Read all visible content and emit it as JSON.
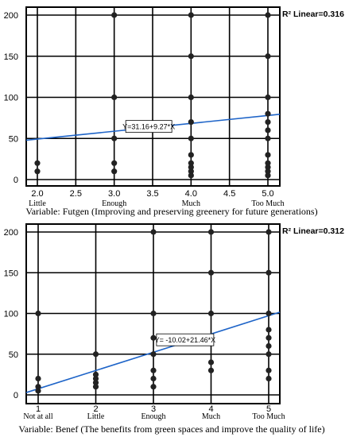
{
  "chart_data": [
    {
      "type": "scatter",
      "xlabel": "Variable: Futgen (Improving and preserving greenery for future generations)",
      "ylabel": "",
      "xlim": [
        1.8,
        5.2
      ],
      "ylim": [
        -10,
        205
      ],
      "x_ticks": [
        "2.0",
        "2.5",
        "3.0",
        "3.5",
        "4.0",
        "4.5",
        "5.0"
      ],
      "x_tick_values": [
        2.0,
        2.5,
        3.0,
        3.5,
        4.0,
        4.5,
        5.0
      ],
      "y_ticks": [
        "0",
        "50",
        "100",
        "150",
        "200"
      ],
      "y_tick_values": [
        0,
        50,
        100,
        150,
        200
      ],
      "category_labels": [
        {
          "x": 2.0,
          "label": "Little"
        },
        {
          "x": 3.0,
          "label": "Enough"
        },
        {
          "x": 4.0,
          "label": "Much"
        },
        {
          "x": 5.0,
          "label": "Too Much"
        }
      ],
      "r2_label": "R² Linear=0.316",
      "fit": {
        "equation": "Y=31.16+9.27*X",
        "intercept": 31.16,
        "slope": 9.27,
        "label_x": 3.45
      },
      "points": [
        {
          "x": 2,
          "y": 10
        },
        {
          "x": 2,
          "y": 20
        },
        {
          "x": 3,
          "y": 10
        },
        {
          "x": 3,
          "y": 20
        },
        {
          "x": 3,
          "y": 50
        },
        {
          "x": 3,
          "y": 100
        },
        {
          "x": 3,
          "y": 200
        },
        {
          "x": 4,
          "y": 5
        },
        {
          "x": 4,
          "y": 10
        },
        {
          "x": 4,
          "y": 15
        },
        {
          "x": 4,
          "y": 20
        },
        {
          "x": 4,
          "y": 30
        },
        {
          "x": 4,
          "y": 50
        },
        {
          "x": 4,
          "y": 70
        },
        {
          "x": 4,
          "y": 100
        },
        {
          "x": 4,
          "y": 150
        },
        {
          "x": 4,
          "y": 200
        },
        {
          "x": 5,
          "y": 5
        },
        {
          "x": 5,
          "y": 10
        },
        {
          "x": 5,
          "y": 15
        },
        {
          "x": 5,
          "y": 20
        },
        {
          "x": 5,
          "y": 30
        },
        {
          "x": 5,
          "y": 50
        },
        {
          "x": 5,
          "y": 60
        },
        {
          "x": 5,
          "y": 70
        },
        {
          "x": 5,
          "y": 80
        },
        {
          "x": 5,
          "y": 100
        },
        {
          "x": 5,
          "y": 150
        },
        {
          "x": 5,
          "y": 200
        }
      ],
      "grid": true,
      "gridlines_x": [
        2.0,
        2.5,
        3.0,
        3.5,
        4.0,
        4.5,
        5.0
      ],
      "gridlines_y": [
        0,
        50,
        100,
        150,
        200
      ]
    },
    {
      "type": "scatter",
      "xlabel": "Variable: Benef (The benefits from green spaces and improve the quality of life)",
      "ylabel": "",
      "xlim": [
        0.6,
        5.2
      ],
      "ylim": [
        -10,
        205
      ],
      "x_ticks": [
        "1",
        "2",
        "3",
        "4",
        "5"
      ],
      "x_tick_values": [
        1,
        2,
        3,
        4,
        5
      ],
      "y_ticks": [
        "0",
        "50",
        "100",
        "150",
        "200"
      ],
      "y_tick_values": [
        0,
        50,
        100,
        150,
        200
      ],
      "category_labels": [
        {
          "x": 1,
          "label": "Not at all"
        },
        {
          "x": 2,
          "label": "Little"
        },
        {
          "x": 3,
          "label": "Enough"
        },
        {
          "x": 4,
          "label": "Much"
        },
        {
          "x": 5,
          "label": "Too Much"
        }
      ],
      "r2_label": "R² Linear=0.312",
      "fit": {
        "equation": "Y= -10.02+21.46*X",
        "intercept": -10.02,
        "slope": 21.46,
        "label_x": 3.55
      },
      "points": [
        {
          "x": 1,
          "y": 5
        },
        {
          "x": 1,
          "y": 10
        },
        {
          "x": 1,
          "y": 20
        },
        {
          "x": 1,
          "y": 100
        },
        {
          "x": 2,
          "y": 10
        },
        {
          "x": 2,
          "y": 15
        },
        {
          "x": 2,
          "y": 20
        },
        {
          "x": 2,
          "y": 25
        },
        {
          "x": 2,
          "y": 50
        },
        {
          "x": 3,
          "y": 10
        },
        {
          "x": 3,
          "y": 20
        },
        {
          "x": 3,
          "y": 30
        },
        {
          "x": 3,
          "y": 50
        },
        {
          "x": 3,
          "y": 70
        },
        {
          "x": 3,
          "y": 100
        },
        {
          "x": 3,
          "y": 200
        },
        {
          "x": 4,
          "y": 30
        },
        {
          "x": 4,
          "y": 40
        },
        {
          "x": 4,
          "y": 100
        },
        {
          "x": 4,
          "y": 150
        },
        {
          "x": 4,
          "y": 200
        },
        {
          "x": 5,
          "y": 20
        },
        {
          "x": 5,
          "y": 30
        },
        {
          "x": 5,
          "y": 50
        },
        {
          "x": 5,
          "y": 60
        },
        {
          "x": 5,
          "y": 70
        },
        {
          "x": 5,
          "y": 80
        },
        {
          "x": 5,
          "y": 100
        },
        {
          "x": 5,
          "y": 150
        },
        {
          "x": 5,
          "y": 200
        }
      ],
      "grid": true,
      "gridlines_x": [
        1,
        2,
        3,
        4,
        5
      ],
      "gridlines_y": [
        0,
        50,
        100,
        150,
        200
      ]
    }
  ]
}
